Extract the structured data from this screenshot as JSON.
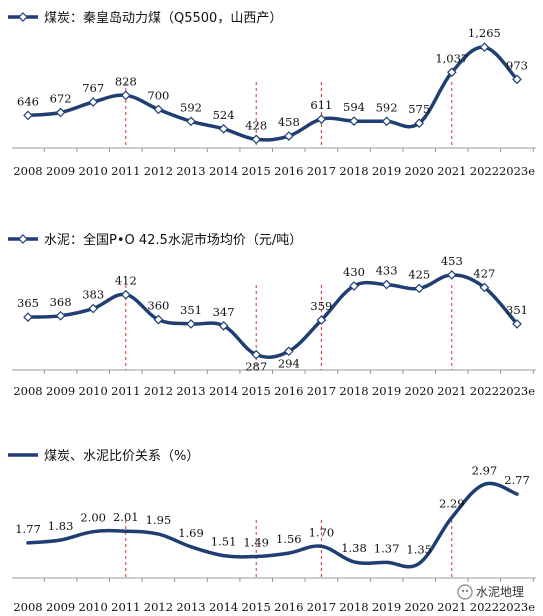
{
  "colors": {
    "line": "#1f3f73",
    "axis": "#999999",
    "dashed": "#d0342c",
    "text": "#111111"
  },
  "chart_data": [
    {
      "type": "line",
      "title": "煤炭：秦皇岛动力煤（Q5500，山西产）",
      "categories": [
        "2008",
        "2009",
        "2010",
        "2011",
        "2012",
        "2013",
        "2014",
        "2015",
        "2016",
        "2017",
        "2018",
        "2019",
        "2020",
        "2021",
        "2022",
        "2023e"
      ],
      "values": [
        646,
        672,
        767,
        828,
        700,
        592,
        524,
        428,
        458,
        611,
        594,
        592,
        575,
        1037,
        1265,
        973
      ],
      "value_labels": [
        "646",
        "672",
        "767",
        "828",
        "700",
        "592",
        "524",
        "428",
        "458",
        "611",
        "594",
        "592",
        "575",
        "1,037",
        "1,265",
        "973"
      ],
      "ylim": [
        350,
        1330
      ],
      "marker": "diamond",
      "smooth": true,
      "highlight_years": [
        "2011",
        "2015",
        "2017",
        "2021"
      ]
    },
    {
      "type": "line",
      "title": "水泥：全国P•O 42.5水泥市场均价（元/吨）",
      "categories": [
        "2008",
        "2009",
        "2010",
        "2011",
        "2012",
        "2013",
        "2014",
        "2015",
        "2016",
        "2017",
        "2018",
        "2019",
        "2020",
        "2021",
        "2022",
        "2023e"
      ],
      "values": [
        365,
        368,
        383,
        412,
        360,
        351,
        347,
        287,
        294,
        359,
        430,
        433,
        425,
        453,
        427,
        351
      ],
      "value_labels": [
        "365",
        "368",
        "383",
        "412",
        "360",
        "351",
        "347",
        "287",
        "294",
        "359",
        "430",
        "433",
        "425",
        "453",
        "427",
        "351"
      ],
      "ylim": [
        255,
        480
      ],
      "marker": "diamond",
      "smooth": true,
      "highlight_years": [
        "2011",
        "2015",
        "2017",
        "2021"
      ]
    },
    {
      "type": "line",
      "title": "煤炭、水泥比价关系（%）",
      "categories": [
        "2008",
        "2009",
        "2010",
        "2011",
        "2012",
        "2013",
        "2014",
        "2015",
        "2016",
        "2017",
        "2018",
        "2019",
        "2020",
        "2021",
        "2022",
        "2023e"
      ],
      "values": [
        1.77,
        1.83,
        2.0,
        2.01,
        1.95,
        1.69,
        1.51,
        1.49,
        1.56,
        1.7,
        1.38,
        1.37,
        1.35,
        2.29,
        2.97,
        2.77
      ],
      "value_labels": [
        "1.77",
        "1.83",
        "2.00",
        "2.01",
        "1.95",
        "1.69",
        "1.51",
        "1.49",
        "1.56",
        "1.70",
        "1.38",
        "1.37",
        "1.35",
        "2.29",
        "2.97",
        "2.77"
      ],
      "ylim": [
        1.05,
        3.1
      ],
      "marker": "none",
      "smooth": true,
      "highlight_years": [
        "2011",
        "2015",
        "2017",
        "2021"
      ]
    }
  ],
  "watermark": "水泥地理"
}
